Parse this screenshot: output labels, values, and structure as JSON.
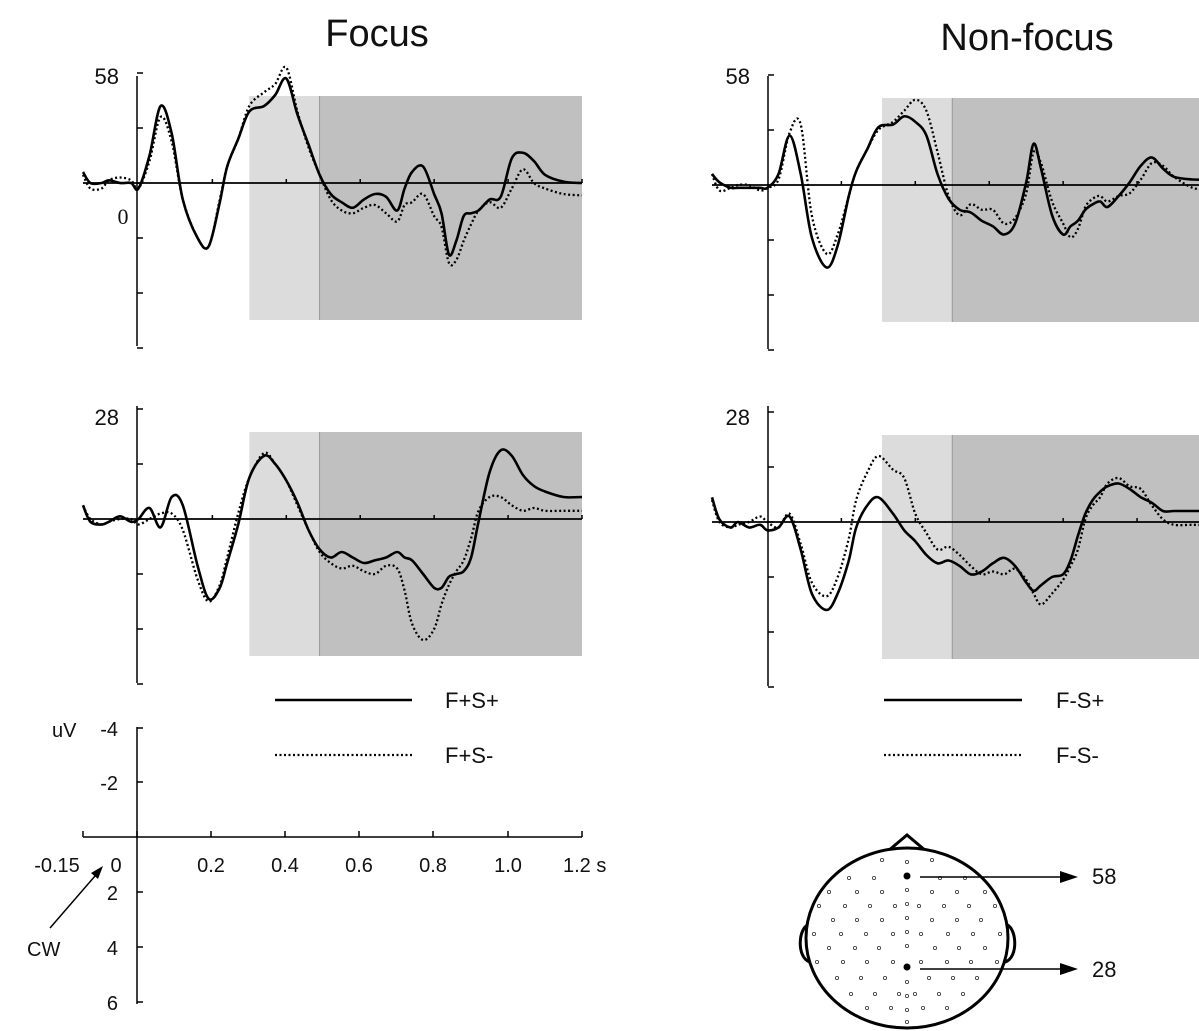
{
  "titles": {
    "left": "Focus",
    "right": "Non-focus"
  },
  "axis_labels": {
    "zero": "0"
  },
  "legend": {
    "focus": {
      "solid": "F+S+",
      "dotted": "F+S-"
    },
    "nonfocus": {
      "solid": "F-S+",
      "dotted": "F-S-"
    }
  },
  "scale_key": {
    "unit_label": "uV",
    "y_ticks": [
      "-4",
      "-2",
      "2",
      "4",
      "6"
    ],
    "x_ticks": [
      "-0.15",
      "0",
      "0.2",
      "0.4",
      "0.6",
      "0.8",
      "1.0",
      "1.2 s"
    ],
    "cw_label": "CW"
  },
  "head_map": {
    "labels": [
      "58",
      "28"
    ]
  },
  "colors": {
    "line": "#000000",
    "early_window": "#dcdcdc",
    "late_window": "#c0c0c0"
  },
  "chart_data": [
    {
      "type": "line",
      "panel": "Focus / channel 58",
      "channel_label": "58",
      "x_unit": "s",
      "y_unit": "uV",
      "y_axis": "negative up",
      "xlim": [
        -0.15,
        1.2
      ],
      "ylim": [
        -4,
        6
      ],
      "windows": [
        [
          0.3,
          0.49
        ],
        [
          0.49,
          1.2
        ]
      ],
      "x": [
        -0.15,
        -0.13,
        -0.1,
        -0.08,
        -0.05,
        -0.02,
        0,
        0.03,
        0.06,
        0.09,
        0.12,
        0.16,
        0.19,
        0.22,
        0.24,
        0.27,
        0.3,
        0.34,
        0.37,
        0.4,
        0.43,
        0.46,
        0.49,
        0.52,
        0.55,
        0.58,
        0.61,
        0.64,
        0.67,
        0.7,
        0.72,
        0.74,
        0.77,
        0.8,
        0.82,
        0.84,
        0.86,
        0.88,
        0.9,
        0.92,
        0.95,
        0.98,
        1.01,
        1.04,
        1.07,
        1.1,
        1.15,
        1.2
      ],
      "series": [
        {
          "name": "F+S+",
          "style": "solid",
          "values": [
            -0.4,
            0.0,
            0.0,
            -0.1,
            0.0,
            0.0,
            0.2,
            -1.0,
            -2.8,
            -1.8,
            0.6,
            2.0,
            2.3,
            0.7,
            -0.6,
            -1.6,
            -2.6,
            -2.8,
            -3.2,
            -3.8,
            -2.5,
            -1.4,
            -0.3,
            0.4,
            0.7,
            0.9,
            0.6,
            0.4,
            0.5,
            1.0,
            0.2,
            -0.4,
            -0.6,
            0.4,
            1.1,
            2.6,
            2.1,
            1.2,
            1.1,
            1.0,
            0.6,
            0.5,
            -0.9,
            -1.1,
            -0.8,
            -0.3,
            -0.05,
            0.0
          ]
        },
        {
          "name": "F+S-",
          "style": "dotted",
          "values": [
            -0.3,
            0.2,
            0.2,
            -0.1,
            -0.2,
            -0.1,
            0.2,
            -0.8,
            -2.4,
            -1.5,
            0.6,
            2.0,
            2.3,
            0.6,
            -0.6,
            -1.6,
            -2.8,
            -3.3,
            -3.6,
            -4.2,
            -2.6,
            -1.3,
            -0.3,
            0.6,
            1.0,
            1.1,
            0.9,
            0.8,
            1.1,
            1.4,
            0.8,
            0.7,
            0.4,
            1.2,
            1.6,
            2.9,
            2.8,
            2.1,
            1.5,
            1.0,
            0.7,
            0.9,
            0.2,
            -0.5,
            0.0,
            0.2,
            0.4,
            0.45
          ]
        }
      ]
    },
    {
      "type": "line",
      "panel": "Focus / channel 28",
      "channel_label": "28",
      "x_unit": "s",
      "y_unit": "uV",
      "y_axis": "negative up",
      "xlim": [
        -0.15,
        1.2
      ],
      "ylim": [
        -4,
        6
      ],
      "windows": [
        [
          0.3,
          0.49
        ],
        [
          0.49,
          1.2
        ]
      ],
      "x": [
        -0.15,
        -0.13,
        -0.1,
        -0.08,
        -0.05,
        -0.02,
        0,
        0.03,
        0.06,
        0.09,
        0.12,
        0.16,
        0.19,
        0.22,
        0.24,
        0.27,
        0.3,
        0.34,
        0.37,
        0.4,
        0.43,
        0.46,
        0.49,
        0.52,
        0.55,
        0.58,
        0.61,
        0.64,
        0.67,
        0.7,
        0.72,
        0.74,
        0.77,
        0.8,
        0.82,
        0.84,
        0.86,
        0.88,
        0.9,
        0.92,
        0.95,
        0.98,
        1.01,
        1.04,
        1.07,
        1.1,
        1.15,
        1.2
      ],
      "series": [
        {
          "name": "F+S+",
          "style": "solid",
          "values": [
            -0.5,
            0.1,
            0.2,
            0.1,
            -0.1,
            0.1,
            0.0,
            -0.4,
            0.3,
            -0.8,
            -0.5,
            1.7,
            2.9,
            2.5,
            1.6,
            0.2,
            -1.5,
            -2.3,
            -2.0,
            -1.4,
            -0.6,
            0.4,
            1.1,
            1.4,
            1.2,
            1.4,
            1.6,
            1.5,
            1.4,
            1.2,
            1.4,
            1.5,
            2.0,
            2.5,
            2.5,
            2.1,
            2.0,
            1.9,
            1.4,
            0.1,
            -1.7,
            -2.5,
            -2.3,
            -1.6,
            -1.2,
            -1.0,
            -0.8,
            -0.8
          ]
        },
        {
          "name": "F+S-",
          "style": "dotted",
          "values": [
            -0.5,
            0.0,
            0.2,
            0.1,
            0.0,
            0.0,
            0.2,
            0.0,
            -0.2,
            -0.2,
            0.4,
            2.2,
            3.0,
            2.4,
            1.4,
            -0.2,
            -1.5,
            -2.4,
            -2.0,
            -1.4,
            -0.5,
            0.4,
            1.2,
            1.6,
            1.8,
            1.7,
            1.9,
            2.0,
            1.7,
            1.8,
            2.6,
            3.8,
            4.4,
            4.0,
            3.1,
            2.4,
            1.9,
            1.5,
            0.7,
            -0.3,
            -0.8,
            -0.8,
            -0.5,
            -0.3,
            -0.4,
            -0.3,
            -0.3,
            -0.3
          ]
        }
      ]
    },
    {
      "type": "line",
      "panel": "Non-focus / channel 58",
      "channel_label": "58",
      "x_unit": "s",
      "y_unit": "uV",
      "y_axis": "negative up",
      "xlim": [
        -0.15,
        1.2
      ],
      "ylim": [
        -4,
        6
      ],
      "windows": [
        [
          0.31,
          0.5
        ],
        [
          0.5,
          1.2
        ]
      ],
      "x": [
        -0.15,
        -0.13,
        -0.1,
        -0.08,
        -0.05,
        -0.02,
        0,
        0.03,
        0.06,
        0.09,
        0.12,
        0.16,
        0.19,
        0.22,
        0.24,
        0.27,
        0.3,
        0.34,
        0.37,
        0.4,
        0.43,
        0.46,
        0.49,
        0.52,
        0.55,
        0.58,
        0.61,
        0.64,
        0.67,
        0.7,
        0.72,
        0.74,
        0.77,
        0.8,
        0.82,
        0.84,
        0.86,
        0.88,
        0.9,
        0.92,
        0.95,
        0.98,
        1.01,
        1.04,
        1.07,
        1.1,
        1.15,
        1.2
      ],
      "series": [
        {
          "name": "F-S+",
          "style": "solid",
          "values": [
            -0.4,
            -0.1,
            0.1,
            0.1,
            0.1,
            0.1,
            0.1,
            -0.4,
            -1.8,
            -0.4,
            1.9,
            3.0,
            2.2,
            0.4,
            -0.5,
            -1.3,
            -2.1,
            -2.2,
            -2.5,
            -2.3,
            -1.8,
            -0.4,
            0.5,
            0.9,
            1.0,
            1.3,
            1.5,
            1.8,
            1.4,
            -0.1,
            -1.5,
            -0.6,
            1.1,
            1.8,
            1.5,
            1.3,
            0.9,
            0.7,
            0.6,
            0.8,
            0.4,
            -0.1,
            -0.7,
            -1.0,
            -0.6,
            -0.3,
            -0.2,
            -0.2
          ]
        },
        {
          "name": "F-S-",
          "style": "dotted",
          "values": [
            -0.4,
            0.2,
            0.1,
            0.0,
            0.0,
            0.2,
            0.1,
            -0.2,
            -1.9,
            -2.2,
            1.1,
            2.5,
            1.8,
            0.4,
            -0.5,
            -1.3,
            -2.0,
            -2.3,
            -2.7,
            -3.1,
            -2.7,
            -1.2,
            0.4,
            1.1,
            0.7,
            0.9,
            0.9,
            1.4,
            1.2,
            0.3,
            -1.2,
            -0.8,
            0.6,
            1.4,
            1.9,
            1.6,
            0.8,
            0.5,
            0.4,
            0.6,
            0.4,
            0.3,
            -0.2,
            -0.8,
            -0.7,
            -0.3,
            0.1,
            0.2
          ]
        }
      ]
    },
    {
      "type": "line",
      "panel": "Non-focus / channel 28",
      "channel_label": "28",
      "x_unit": "s",
      "y_unit": "uV",
      "y_axis": "negative up",
      "xlim": [
        -0.15,
        1.2
      ],
      "ylim": [
        -4,
        6
      ],
      "windows": [
        [
          0.31,
          0.5
        ],
        [
          0.5,
          1.2
        ]
      ],
      "x": [
        -0.15,
        -0.13,
        -0.1,
        -0.08,
        -0.05,
        -0.02,
        0,
        0.03,
        0.06,
        0.09,
        0.12,
        0.16,
        0.19,
        0.22,
        0.24,
        0.27,
        0.3,
        0.34,
        0.37,
        0.4,
        0.43,
        0.46,
        0.49,
        0.52,
        0.55,
        0.58,
        0.61,
        0.64,
        0.67,
        0.7,
        0.72,
        0.74,
        0.77,
        0.8,
        0.82,
        0.84,
        0.86,
        0.88,
        0.9,
        0.92,
        0.95,
        0.98,
        1.01,
        1.04,
        1.07,
        1.1,
        1.15,
        1.2
      ],
      "series": [
        {
          "name": "F-S+",
          "style": "solid",
          "values": [
            -0.9,
            -0.1,
            0.2,
            0.0,
            0.2,
            0.1,
            0.3,
            0.2,
            -0.2,
            1.0,
            2.6,
            3.2,
            2.6,
            1.4,
            0.2,
            -0.6,
            -0.9,
            -0.3,
            0.3,
            0.7,
            1.2,
            1.5,
            1.4,
            1.6,
            1.9,
            1.8,
            1.5,
            1.3,
            1.6,
            2.2,
            2.5,
            2.3,
            2.0,
            1.9,
            1.4,
            0.5,
            -0.3,
            -0.8,
            -1.1,
            -1.3,
            -1.4,
            -1.2,
            -0.9,
            -0.7,
            -0.4,
            -0.4,
            -0.4,
            -0.4
          ]
        },
        {
          "name": "F-S-",
          "style": "dotted",
          "values": [
            -0.8,
            0.0,
            0.2,
            0.1,
            0.0,
            -0.2,
            0.0,
            0.2,
            -0.3,
            0.8,
            2.2,
            2.7,
            2.0,
            0.6,
            -0.8,
            -1.8,
            -2.4,
            -1.9,
            -1.6,
            -0.3,
            0.4,
            1.0,
            0.9,
            1.2,
            1.6,
            1.9,
            1.8,
            1.9,
            1.7,
            2.1,
            2.6,
            3.0,
            2.6,
            2.1,
            1.6,
            1.0,
            -0.1,
            -0.6,
            -0.9,
            -1.4,
            -1.6,
            -1.3,
            -1.2,
            -0.6,
            -0.1,
            0.1,
            0.1,
            0.1
          ]
        }
      ]
    }
  ]
}
